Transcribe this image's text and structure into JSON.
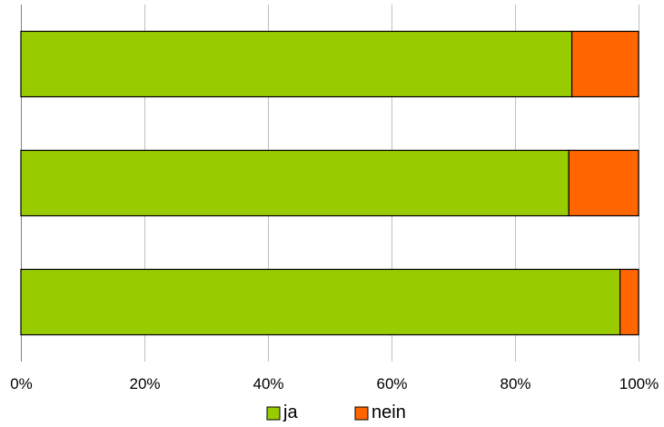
{
  "chart_data": {
    "type": "bar",
    "orientation": "horizontal",
    "stacked": "percent",
    "categories": [
      "",
      "",
      ""
    ],
    "series": [
      {
        "name": "ja",
        "color": "#99cc00",
        "values": [
          89.2,
          88.7,
          97.0
        ]
      },
      {
        "name": "nein",
        "color": "#ff6600",
        "values": [
          10.8,
          11.3,
          3.0
        ]
      }
    ],
    "xlim": [
      0,
      100
    ],
    "xticks": [
      "0%",
      "20%",
      "40%",
      "60%",
      "80%",
      "100%"
    ],
    "grid": "vertical",
    "legend_position": "bottom",
    "title": "",
    "xlabel": "",
    "ylabel": ""
  }
}
